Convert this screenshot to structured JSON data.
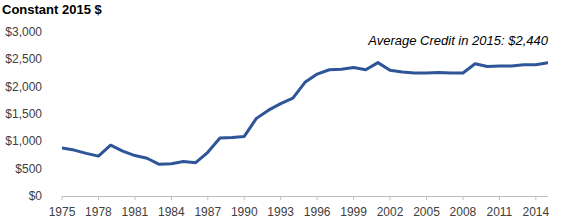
{
  "chart_data": {
    "type": "line",
    "title": "Constant 2015 $",
    "annotation": "Average Credit in 2015: $2,440",
    "x": [
      1975,
      1976,
      1977,
      1978,
      1979,
      1980,
      1981,
      1982,
      1983,
      1984,
      1985,
      1986,
      1987,
      1988,
      1989,
      1990,
      1991,
      1992,
      1993,
      1994,
      1995,
      1996,
      1997,
      1998,
      1999,
      2000,
      2001,
      2002,
      2003,
      2004,
      2005,
      2006,
      2007,
      2008,
      2009,
      2010,
      2011,
      2012,
      2013,
      2014,
      2015
    ],
    "values": [
      880,
      840,
      780,
      730,
      930,
      820,
      740,
      690,
      580,
      590,
      630,
      610,
      800,
      1060,
      1070,
      1090,
      1420,
      1570,
      1690,
      1790,
      2080,
      2230,
      2310,
      2320,
      2350,
      2310,
      2440,
      2300,
      2270,
      2250,
      2250,
      2260,
      2250,
      2250,
      2420,
      2370,
      2380,
      2380,
      2400,
      2400,
      2440
    ],
    "color": "#2e5597",
    "xlim": [
      1975,
      2015
    ],
    "xticks": [
      1975,
      1978,
      1981,
      1984,
      1987,
      1990,
      1993,
      1996,
      1999,
      2002,
      2005,
      2008,
      2011,
      2014
    ],
    "ylim": [
      0,
      3000
    ],
    "yticks": [
      {
        "value": 0,
        "label": "$0"
      },
      {
        "value": 500,
        "label": "$500"
      },
      {
        "value": 1000,
        "label": "$1,000"
      },
      {
        "value": 1500,
        "label": "$1,500"
      },
      {
        "value": 2000,
        "label": "$2,000"
      },
      {
        "value": 2500,
        "label": "$2,500"
      },
      {
        "value": 3000,
        "label": "$3,000"
      }
    ],
    "grid": false
  }
}
